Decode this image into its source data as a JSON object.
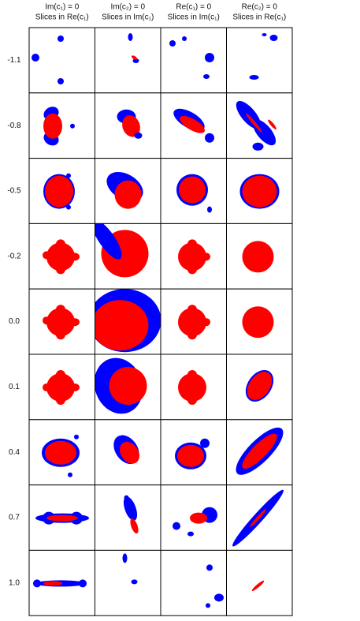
{
  "columns": [
    {
      "line1": "Im(c₁) = 0",
      "line2": "Slices in Re(c₁)"
    },
    {
      "line1": "Im(c₂) = 0",
      "line2": "Slices in Im(c₁)"
    },
    {
      "line1": "Re(c₁) = 0",
      "line2": "Slices in Im(c₁)"
    },
    {
      "line1": "Re(c₂) = 0",
      "line2": "Slices in Re(c₁)"
    }
  ],
  "rows": [
    "-1.1",
    "-0.8",
    "-0.5",
    "-0.2",
    "0.0",
    "0.1",
    "0.4",
    "0.7",
    "1.0"
  ]
}
